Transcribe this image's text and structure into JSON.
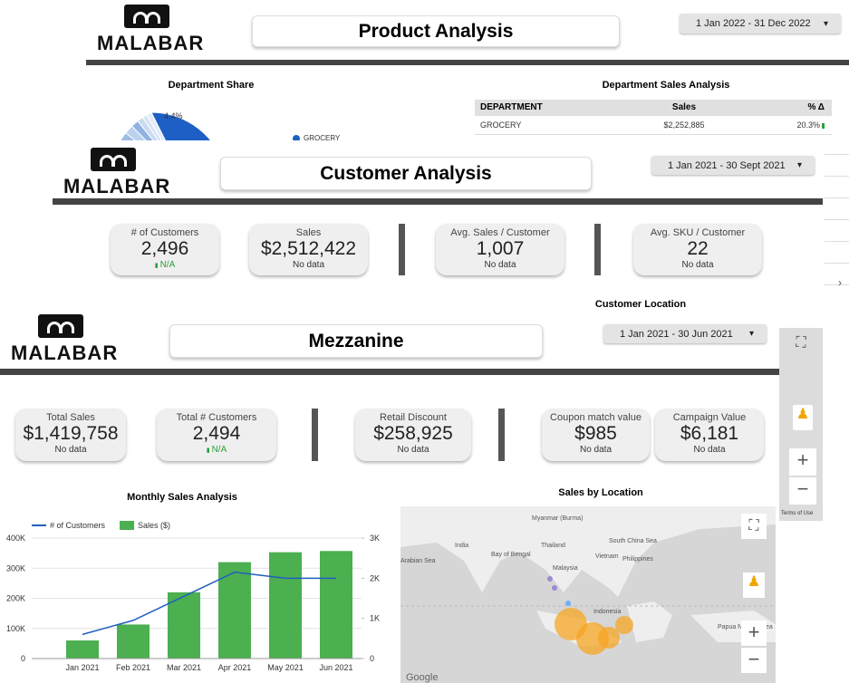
{
  "dashboards": [
    {
      "logo": "MALABAR",
      "title": "Product Analysis",
      "date_range": "1 Jan 2022 - 31 Dec 2022",
      "pie_title": "Department Share",
      "pie_label": "4.4%",
      "pie_legend": "GROCERY",
      "table": {
        "title": "Department Sales Analysis",
        "headers": [
          "DEPARTMENT",
          "Sales",
          "% Δ"
        ],
        "rows": [
          [
            "GROCERY",
            "$2,252,885",
            "20.3%"
          ]
        ]
      }
    },
    {
      "logo": "MALABAR",
      "title": "Customer Analysis",
      "date_range": "1 Jan 2021 - 30 Sept 2021",
      "kpis": [
        {
          "label": "# of Customers",
          "value": "2,496",
          "note": "N/A"
        },
        {
          "label": "Sales",
          "value": "$2,512,422",
          "note": "No data"
        },
        {
          "label": "Avg. Sales / Customer",
          "value": "1,007",
          "note": "No data"
        },
        {
          "label": "Avg. SKU / Customer",
          "value": "22",
          "note": "No data"
        }
      ],
      "section_title": "Customer Location",
      "map_terms": "Terms of Use"
    },
    {
      "logo": "MALABAR",
      "title": "Mezzanine",
      "date_range": "1 Jan 2021 - 30 Jun 2021",
      "kpis": [
        {
          "label": "Total Sales",
          "value": "$1,419,758",
          "note": "No data"
        },
        {
          "label": "Total # Customers",
          "value": "2,494",
          "note": "N/A"
        },
        {
          "label": "Retail Discount",
          "value": "$258,925",
          "note": "No data"
        },
        {
          "label": "Coupon match value",
          "value": "$985",
          "note": "No data"
        },
        {
          "label": "Campaign Value",
          "value": "$6,181",
          "note": "No data"
        }
      ],
      "map": {
        "title": "Sales by Location",
        "places": [
          "India",
          "Myanmar (Burma)",
          "Thailand",
          "Vietnam",
          "Philippines",
          "Malaysia",
          "Indonesia",
          "Papua New Guinea",
          "Arabian Sea",
          "Bay of Bengal",
          "South China Sea"
        ],
        "brand": "Google"
      }
    }
  ],
  "chart_data": {
    "type": "bar_line",
    "title": "Monthly Sales Analysis",
    "categories": [
      "Jan 2021",
      "Feb 2021",
      "Mar 2021",
      "Apr 2021",
      "May 2021",
      "Jun 2021"
    ],
    "series": [
      {
        "name": "# of Customers",
        "type": "line",
        "axis": "y2",
        "color": "#1f5fbf",
        "values": [
          600,
          950,
          1550,
          2150,
          2000,
          2000
        ]
      },
      {
        "name": "Sales ($)",
        "type": "bar",
        "color": "#4caf50",
        "values": [
          60000,
          113000,
          220000,
          320000,
          353000,
          357000
        ]
      }
    ],
    "ylim": [
      0,
      400000
    ],
    "yticks": [
      0,
      {
        "value": 100000,
        "label": "100K"
      },
      {
        "value": 200000,
        "label": "200K"
      },
      {
        "value": 300000,
        "label": "300K"
      },
      {
        "value": 400000,
        "label": "400K"
      }
    ],
    "y2lim": [
      0,
      3000
    ],
    "y2ticks": [
      0,
      {
        "value": 1000,
        "label": "1K"
      },
      {
        "value": 2000,
        "label": "2K"
      },
      {
        "value": 3000,
        "label": "3K"
      }
    ],
    "grid": true
  }
}
